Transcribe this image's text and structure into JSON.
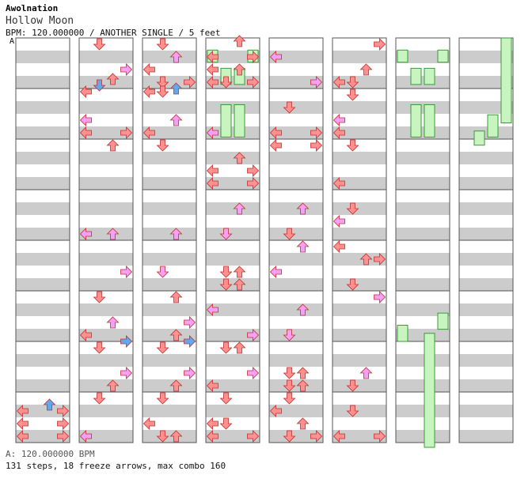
{
  "header": {
    "artist": "Awolnation",
    "title": "Hollow Moon",
    "info": "BPM: 120.000000 / ANOTHER SINGLE / 5 feet",
    "bpm_marker": "A"
  },
  "footer": {
    "bpm_line": "A: 120.000000 BPM",
    "stats_line": "131 steps, 18 freeze arrows, max combo 160"
  },
  "colors": {
    "quarter": "#ff9090",
    "eighth": "#f4a0f4",
    "sixteenth": "#60a8f0",
    "freeze_fill": "#c8f4c0",
    "freeze_edge": "#3a9a3a",
    "band_light": "#ffffff",
    "band_dark": "#cccccc"
  },
  "icons": {
    "left": "left-arrow-icon",
    "down": "down-arrow-icon",
    "up": "up-arrow-icon",
    "right": "right-arrow-icon"
  },
  "chart_data": {
    "type": "step-chart",
    "lanes": [
      "left",
      "down",
      "up",
      "right"
    ],
    "measures_per_column": 8,
    "columns": 8,
    "bpm": 120,
    "notes": [
      {
        "m": 7,
        "b": 0.25,
        "d": "up",
        "c": "s"
      },
      {
        "m": 7,
        "b": 0.375,
        "d": "left",
        "c": "q"
      },
      {
        "m": 7,
        "b": 0.375,
        "d": "right",
        "c": "q"
      },
      {
        "m": 7,
        "b": 0.625,
        "d": "left",
        "c": "q"
      },
      {
        "m": 7,
        "b": 0.625,
        "d": "right",
        "c": "q"
      },
      {
        "m": 7,
        "b": 0.875,
        "d": "left",
        "c": "q"
      },
      {
        "m": 7,
        "b": 0.875,
        "d": "right",
        "c": "q"
      },
      {
        "m": 8,
        "b": 0.125,
        "d": "down",
        "c": "q"
      },
      {
        "m": 8,
        "b": 0.625,
        "d": "right",
        "c": "e"
      },
      {
        "m": 8,
        "b": 0.8125,
        "d": "up",
        "c": "q"
      },
      {
        "m": 8,
        "b": 0.9375,
        "d": "down",
        "c": "s"
      },
      {
        "m": 9,
        "b": 0.0625,
        "d": "left",
        "c": "q"
      },
      {
        "m": 9,
        "b": 0.625,
        "d": "left",
        "c": "e"
      },
      {
        "m": 9,
        "b": 0.875,
        "d": "left",
        "c": "q"
      },
      {
        "m": 9,
        "b": 0.875,
        "d": "right",
        "c": "q"
      },
      {
        "m": 10,
        "b": 0.125,
        "d": "up",
        "c": "q"
      },
      {
        "m": 11,
        "b": 0.875,
        "d": "left",
        "c": "e"
      },
      {
        "m": 11,
        "b": 0.875,
        "d": "up",
        "c": "e"
      },
      {
        "m": 12,
        "b": 0.625,
        "d": "right",
        "c": "e"
      },
      {
        "m": 13,
        "b": 0.125,
        "d": "down",
        "c": "q"
      },
      {
        "m": 13,
        "b": 0.625,
        "d": "up",
        "c": "e"
      },
      {
        "m": 13,
        "b": 0.875,
        "d": "left",
        "c": "q"
      },
      {
        "m": 14,
        "b": 0.125,
        "d": "down",
        "c": "q"
      },
      {
        "m": 14,
        "b": 0.0,
        "d": "right",
        "c": "s"
      },
      {
        "m": 14,
        "b": 0.625,
        "d": "right",
        "c": "e"
      },
      {
        "m": 14,
        "b": 0.875,
        "d": "up",
        "c": "q"
      },
      {
        "m": 15,
        "b": 0.125,
        "d": "down",
        "c": "q"
      },
      {
        "m": 15,
        "b": 0.875,
        "d": "left",
        "c": "e"
      },
      {
        "m": 16,
        "b": 0.375,
        "d": "up",
        "c": "e"
      },
      {
        "m": 16,
        "b": 0.125,
        "d": "down",
        "c": "q"
      },
      {
        "m": 16,
        "b": 0.625,
        "d": "left",
        "c": "q"
      },
      {
        "m": 16,
        "b": 0.875,
        "d": "down",
        "c": "q"
      },
      {
        "m": 16,
        "b": 0.875,
        "d": "right",
        "c": "q"
      },
      {
        "m": 17,
        "b": 0.0625,
        "d": "left",
        "c": "q"
      },
      {
        "m": 17,
        "b": 0.0625,
        "d": "down",
        "c": "q"
      },
      {
        "m": 17,
        "b": 0.0,
        "d": "up",
        "c": "s"
      },
      {
        "m": 17,
        "b": 0.625,
        "d": "up",
        "c": "e"
      },
      {
        "m": 17,
        "b": 0.875,
        "d": "left",
        "c": "q"
      },
      {
        "m": 18,
        "b": 0.125,
        "d": "down",
        "c": "q"
      },
      {
        "m": 19,
        "b": 0.875,
        "d": "up",
        "c": "e"
      },
      {
        "m": 20,
        "b": 0.625,
        "d": "down",
        "c": "e"
      },
      {
        "m": 21,
        "b": 0.125,
        "d": "up",
        "c": "q"
      },
      {
        "m": 21,
        "b": 0.625,
        "d": "right",
        "c": "e"
      },
      {
        "m": 21,
        "b": 0.875,
        "d": "up",
        "c": "q"
      },
      {
        "m": 22,
        "b": 0.125,
        "d": "down",
        "c": "q"
      },
      {
        "m": 22,
        "b": 0.0,
        "d": "right",
        "c": "s"
      },
      {
        "m": 22,
        "b": 0.625,
        "d": "right",
        "c": "e"
      },
      {
        "m": 22,
        "b": 0.875,
        "d": "up",
        "c": "q"
      },
      {
        "m": 23,
        "b": 0.125,
        "d": "down",
        "c": "q"
      },
      {
        "m": 23,
        "b": 0.625,
        "d": "left",
        "c": "q"
      },
      {
        "m": 23,
        "b": 0.875,
        "d": "down",
        "c": "q"
      },
      {
        "m": 23,
        "b": 0.875,
        "d": "up",
        "c": "q"
      },
      {
        "m": 24,
        "b": 0.375,
        "d": "left",
        "c": "q"
      },
      {
        "m": 24,
        "b": 0.375,
        "d": "right",
        "c": "q"
      },
      {
        "m": 24,
        "b": 0.625,
        "d": "up",
        "c": "q"
      },
      {
        "m": 24,
        "b": 0.875,
        "d": "down",
        "c": "q"
      },
      {
        "m": 24,
        "b": 0.0625,
        "d": "up",
        "c": "q"
      },
      {
        "m": 24,
        "b": 0.625,
        "d": "left",
        "c": "q"
      },
      {
        "m": 24,
        "b": 0.875,
        "d": "left",
        "c": "q"
      },
      {
        "m": 24,
        "b": 0.875,
        "d": "right",
        "c": "q"
      },
      {
        "m": 25,
        "b": 0.875,
        "d": "left",
        "c": "e"
      },
      {
        "m": 26,
        "b": 0.375,
        "d": "up",
        "c": "q"
      },
      {
        "m": 26,
        "b": 0.625,
        "d": "left",
        "c": "q"
      },
      {
        "m": 26,
        "b": 0.625,
        "d": "right",
        "c": "q"
      },
      {
        "m": 26,
        "b": 0.875,
        "d": "left",
        "c": "q"
      },
      {
        "m": 26,
        "b": 0.875,
        "d": "right",
        "c": "q"
      },
      {
        "m": 27,
        "b": 0.375,
        "d": "up",
        "c": "e"
      },
      {
        "m": 27,
        "b": 0.875,
        "d": "down",
        "c": "e"
      },
      {
        "m": 28,
        "b": 0.625,
        "d": "down",
        "c": "q"
      },
      {
        "m": 28,
        "b": 0.625,
        "d": "up",
        "c": "q"
      },
      {
        "m": 28,
        "b": 0.875,
        "d": "down",
        "c": "q"
      },
      {
        "m": 28,
        "b": 0.875,
        "d": "up",
        "c": "q"
      },
      {
        "m": 29,
        "b": 0.375,
        "d": "left",
        "c": "e"
      },
      {
        "m": 29,
        "b": 0.875,
        "d": "right",
        "c": "e"
      },
      {
        "m": 30,
        "b": 0.125,
        "d": "down",
        "c": "q"
      },
      {
        "m": 30,
        "b": 0.125,
        "d": "up",
        "c": "q"
      },
      {
        "m": 30,
        "b": 0.625,
        "d": "right",
        "c": "e"
      },
      {
        "m": 30,
        "b": 0.875,
        "d": "left",
        "c": "q"
      },
      {
        "m": 31,
        "b": 0.125,
        "d": "down",
        "c": "q"
      },
      {
        "m": 31,
        "b": 0.625,
        "d": "left",
        "c": "q"
      },
      {
        "m": 31,
        "b": 0.625,
        "d": "down",
        "c": "q"
      },
      {
        "m": 31,
        "b": 0.875,
        "d": "left",
        "c": "q"
      },
      {
        "m": 31,
        "b": 0.875,
        "d": "right",
        "c": "q"
      },
      {
        "m": 32,
        "b": 0.375,
        "d": "left",
        "c": "e"
      },
      {
        "m": 32,
        "b": 0.875,
        "d": "right",
        "c": "e"
      },
      {
        "m": 33,
        "b": 0.375,
        "d": "down",
        "c": "q"
      },
      {
        "m": 33,
        "b": 0.875,
        "d": "left",
        "c": "q"
      },
      {
        "m": 33,
        "b": 0.875,
        "d": "right",
        "c": "q"
      },
      {
        "m": 34,
        "b": 0.125,
        "d": "left",
        "c": "q"
      },
      {
        "m": 34,
        "b": 0.125,
        "d": "right",
        "c": "q"
      },
      {
        "m": 35,
        "b": 0.375,
        "d": "up",
        "c": "e"
      },
      {
        "m": 35,
        "b": 0.875,
        "d": "down",
        "c": "q"
      },
      {
        "m": 36,
        "b": 0.125,
        "d": "up",
        "c": "e"
      },
      {
        "m": 36,
        "b": 0.625,
        "d": "left",
        "c": "e"
      },
      {
        "m": 37,
        "b": 0.375,
        "d": "up",
        "c": "e"
      },
      {
        "m": 37,
        "b": 0.875,
        "d": "down",
        "c": "e"
      },
      {
        "m": 38,
        "b": 0.625,
        "d": "down",
        "c": "q"
      },
      {
        "m": 38,
        "b": 0.625,
        "d": "up",
        "c": "q"
      },
      {
        "m": 38,
        "b": 0.875,
        "d": "down",
        "c": "q"
      },
      {
        "m": 38,
        "b": 0.875,
        "d": "up",
        "c": "q"
      },
      {
        "m": 39,
        "b": 0.125,
        "d": "down",
        "c": "q"
      },
      {
        "m": 39,
        "b": 0.375,
        "d": "left",
        "c": "q"
      },
      {
        "m": 39,
        "b": 0.625,
        "d": "up",
        "c": "q"
      },
      {
        "m": 39,
        "b": 0.875,
        "d": "down",
        "c": "q"
      },
      {
        "m": 39,
        "b": 0.875,
        "d": "right",
        "c": "q"
      },
      {
        "m": 40,
        "b": 0.125,
        "d": "right",
        "c": "q"
      },
      {
        "m": 40,
        "b": 0.625,
        "d": "up",
        "c": "q"
      },
      {
        "m": 40,
        "b": 0.875,
        "d": "down",
        "c": "q"
      },
      {
        "m": 40,
        "b": 0.875,
        "d": "left",
        "c": "q"
      },
      {
        "m": 41,
        "b": 0.125,
        "d": "down",
        "c": "q"
      },
      {
        "m": 41,
        "b": 0.625,
        "d": "left",
        "c": "e"
      },
      {
        "m": 41,
        "b": 0.875,
        "d": "left",
        "c": "q"
      },
      {
        "m": 42,
        "b": 0.125,
        "d": "down",
        "c": "q"
      },
      {
        "m": 42,
        "b": 0.875,
        "d": "left",
        "c": "q"
      },
      {
        "m": 43,
        "b": 0.375,
        "d": "down",
        "c": "q"
      },
      {
        "m": 43,
        "b": 0.625,
        "d": "left",
        "c": "e"
      },
      {
        "m": 44,
        "b": 0.125,
        "d": "left",
        "c": "q"
      },
      {
        "m": 44,
        "b": 0.375,
        "d": "right",
        "c": "q"
      },
      {
        "m": 44,
        "b": 0.375,
        "d": "up",
        "c": "q"
      },
      {
        "m": 44,
        "b": 0.875,
        "d": "down",
        "c": "q"
      },
      {
        "m": 45,
        "b": 0.125,
        "d": "right",
        "c": "e"
      },
      {
        "m": 46,
        "b": 0.625,
        "d": "up",
        "c": "e"
      },
      {
        "m": 46,
        "b": 0.875,
        "d": "down",
        "c": "q"
      },
      {
        "m": 47,
        "b": 0.375,
        "d": "down",
        "c": "q"
      },
      {
        "m": 47,
        "b": 0.875,
        "d": "left",
        "c": "q"
      },
      {
        "m": 47,
        "b": 0.875,
        "d": "right",
        "c": "q"
      }
    ],
    "freezes": [
      {
        "col": 3,
        "lane": "left",
        "start": 0.03,
        "end": 0.06
      },
      {
        "col": 3,
        "lane": "right",
        "start": 0.03,
        "end": 0.06
      },
      {
        "col": 3,
        "lane": "down",
        "start": 0.075,
        "end": 0.115
      },
      {
        "col": 3,
        "lane": "up",
        "start": 0.075,
        "end": 0.115
      },
      {
        "col": 3,
        "lane": "down",
        "start": 0.165,
        "end": 0.245
      },
      {
        "col": 3,
        "lane": "up",
        "start": 0.165,
        "end": 0.245
      },
      {
        "col": 6,
        "lane": "left",
        "start": 0.03,
        "end": 0.06
      },
      {
        "col": 6,
        "lane": "right",
        "start": 0.03,
        "end": 0.06
      },
      {
        "col": 6,
        "lane": "down",
        "start": 0.075,
        "end": 0.115
      },
      {
        "col": 6,
        "lane": "up",
        "start": 0.075,
        "end": 0.115
      },
      {
        "col": 6,
        "lane": "down",
        "start": 0.165,
        "end": 0.245
      },
      {
        "col": 6,
        "lane": "up",
        "start": 0.165,
        "end": 0.245
      },
      {
        "col": 6,
        "lane": "right",
        "start": 0.68,
        "end": 0.72
      },
      {
        "col": 6,
        "lane": "left",
        "start": 0.71,
        "end": 0.75
      },
      {
        "col": 6,
        "lane": "up",
        "start": 0.73,
        "end": 1.02
      },
      {
        "col": 7,
        "lane": "right",
        "start": 0.0,
        "end": 0.21
      },
      {
        "col": 7,
        "lane": "up",
        "start": 0.19,
        "end": 0.245
      },
      {
        "col": 7,
        "lane": "down",
        "start": 0.23,
        "end": 0.265
      }
    ]
  }
}
